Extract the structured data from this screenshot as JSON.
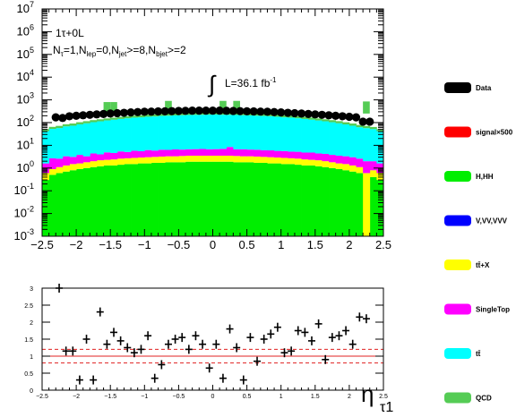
{
  "top_panel": {
    "ytick_exponents": [
      "-3",
      "-2",
      "-1",
      "0",
      "1",
      "2",
      "3",
      "4",
      "5",
      "6",
      "7"
    ],
    "xticks": [
      "−2.5",
      "−2",
      "−1.5",
      "−1",
      "−0.5",
      "0",
      "0.5",
      "1",
      "1.5",
      "2",
      "2.5"
    ],
    "annotation": {
      "line1": "1τ+0L",
      "line2_parts": [
        "N",
        "τ",
        "=1,N",
        "lep",
        "=0,N",
        "jet",
        ">=8,N",
        "bjet",
        ">=2"
      ],
      "lumi_integral": "∫",
      "lumi_text": "L=36.1 fb",
      "lumi_exp": "-1"
    }
  },
  "bottom_panel": {
    "yticks": [
      "0",
      "0.5",
      "1",
      "1.5",
      "2",
      "2.5",
      "3"
    ],
    "xticks": [
      "−2.5",
      "−2",
      "−1.5",
      "−1",
      "−0.5",
      "0",
      "0.5",
      "1",
      "1.5",
      "2",
      "2.5"
    ],
    "xlabel_main": "η",
    "xlabel_sub": "τ1"
  },
  "legend": [
    {
      "label": "Data",
      "color": "#000000"
    },
    {
      "label": "signal×500",
      "color": "#ff0000"
    },
    {
      "label": "H,HH",
      "color": "#00ee00"
    },
    {
      "label": "V,VV,VVV",
      "color": "#0000ff"
    },
    {
      "label": "tt̄+X",
      "color": "#ffff00"
    },
    {
      "label": "SingleTop",
      "color": "#ff00ff"
    },
    {
      "label": "tt̄",
      "color": "#00ffff"
    },
    {
      "label": "QCD",
      "color": "#55cc55"
    }
  ],
  "chart_data": [
    {
      "type": "bar",
      "title": "",
      "xlabel": "η_τ1",
      "ylabel": "",
      "yscale": "log",
      "xlim": [
        -2.5,
        2.5
      ],
      "ylim": [
        0.001,
        10000000
      ],
      "stacked": true,
      "bins": 50,
      "series": [
        {
          "name": "H,HH",
          "values": [
            0.3,
            0.5,
            0.6,
            0.7,
            0.8,
            0.9,
            1.0,
            1.1,
            1.2,
            1.3,
            1.3,
            1.4,
            1.5,
            1.5,
            1.6,
            1.6,
            1.7,
            1.7,
            1.8,
            1.8,
            1.8,
            1.9,
            1.9,
            1.9,
            1.9,
            1.9,
            1.9,
            1.9,
            1.8,
            1.8,
            1.8,
            1.7,
            1.7,
            1.6,
            1.6,
            1.5,
            1.5,
            1.4,
            1.3,
            1.3,
            1.2,
            1.1,
            1.0,
            0.9,
            0.8,
            0.7,
            0.6,
            0.001,
            0.4,
            0.3
          ]
        },
        {
          "name": "tt̄+X",
          "values": [
            0.3,
            0.4,
            0.5,
            0.6,
            0.7,
            0.7,
            0.8,
            0.9,
            1.0,
            1.0,
            1.1,
            1.2,
            1.2,
            1.3,
            1.3,
            1.4,
            1.4,
            1.5,
            1.5,
            1.5,
            1.6,
            1.6,
            1.6,
            1.6,
            1.6,
            1.6,
            1.6,
            1.6,
            1.6,
            1.5,
            1.5,
            1.5,
            1.4,
            1.4,
            1.3,
            1.3,
            1.2,
            1.2,
            1.1,
            1.0,
            1.0,
            0.9,
            0.8,
            0.7,
            0.7,
            0.6,
            0.5,
            0.6,
            0.4,
            0.3
          ]
        },
        {
          "name": "SingleTop",
          "values": [
            1.0,
            1.8,
            1.5,
            2.0,
            1.6,
            2.2,
            1.5,
            2.4,
            1.8,
            2.6,
            2.2,
            2.8,
            2.4,
            3.0,
            2.6,
            3.2,
            2.8,
            3.2,
            3.0,
            3.3,
            3.1,
            3.2,
            3.3,
            3.4,
            3.2,
            3.3,
            3.5,
            5.0,
            3.3,
            3.4,
            3.2,
            3.2,
            3.0,
            3.0,
            2.8,
            2.8,
            2.6,
            2.6,
            2.4,
            2.5,
            2.2,
            2.2,
            2.0,
            1.9,
            1.8,
            1.7,
            1.5,
            1.4,
            1.2,
            1.0
          ]
        },
        {
          "name": "tt̄",
          "values": [
            40,
            50,
            55,
            65,
            70,
            80,
            90,
            100,
            110,
            120,
            130,
            140,
            150,
            160,
            165,
            175,
            180,
            190,
            195,
            200,
            205,
            210,
            212,
            215,
            218,
            218,
            215,
            212,
            210,
            205,
            200,
            195,
            190,
            185,
            175,
            165,
            160,
            150,
            140,
            130,
            120,
            110,
            100,
            90,
            80,
            70,
            60,
            55,
            50,
            40
          ]
        },
        {
          "name": "QCD",
          "values": [
            10,
            12,
            14,
            16,
            18,
            20,
            22,
            24,
            26,
            28,
            30,
            32,
            34,
            36,
            38,
            40,
            42,
            44,
            46,
            48,
            48,
            50,
            50,
            52,
            52,
            52,
            52,
            50,
            50,
            48,
            48,
            46,
            44,
            42,
            40,
            38,
            36,
            34,
            32,
            30,
            28,
            26,
            24,
            22,
            20,
            18,
            16,
            14,
            12,
            10
          ]
        },
        {
          "name": "signal×500",
          "values": [
            0,
            0,
            0,
            0,
            0,
            0,
            0,
            0,
            0,
            0,
            0,
            0,
            0,
            0,
            0,
            0,
            0,
            0,
            0,
            0,
            0,
            0,
            0,
            0,
            0,
            0,
            0,
            0,
            0,
            0,
            0,
            0,
            0,
            0,
            0,
            0,
            0,
            0,
            0,
            0,
            0,
            0,
            0,
            0,
            0,
            0,
            0,
            0,
            0,
            0
          ]
        }
      ],
      "overlay_bins": [
        {
          "x": -1.55,
          "value": 800
        },
        {
          "x": -1.45,
          "value": 800
        },
        {
          "x": -0.65,
          "value": 900
        },
        {
          "x": 0.15,
          "value": 900
        },
        {
          "x": 0.35,
          "value": 900
        },
        {
          "x": 2.25,
          "value": 850
        }
      ],
      "data_points": {
        "name": "Data",
        "x": [
          -2.3,
          -2.2,
          -2.1,
          -2.0,
          -1.9,
          -1.8,
          -1.7,
          -1.6,
          -1.5,
          -1.4,
          -1.3,
          -1.2,
          -1.1,
          -1.0,
          -0.9,
          -0.8,
          -0.7,
          -0.6,
          -0.5,
          -0.4,
          -0.3,
          -0.2,
          -0.1,
          0.0,
          0.1,
          0.2,
          0.3,
          0.4,
          0.5,
          0.6,
          0.7,
          0.8,
          0.9,
          1.0,
          1.1,
          1.2,
          1.3,
          1.4,
          1.5,
          1.6,
          1.7,
          1.8,
          1.9,
          2.0,
          2.1,
          2.2,
          2.3
        ],
        "y": [
          170,
          160,
          190,
          200,
          210,
          220,
          230,
          240,
          250,
          260,
          270,
          280,
          290,
          300,
          305,
          310,
          315,
          320,
          325,
          330,
          335,
          335,
          335,
          335,
          335,
          330,
          325,
          320,
          315,
          310,
          305,
          300,
          290,
          280,
          270,
          260,
          250,
          240,
          230,
          220,
          210,
          200,
          190,
          180,
          170,
          110,
          110
        ]
      }
    },
    {
      "type": "scatter",
      "title": "",
      "xlabel": "η_τ1",
      "ylabel": "",
      "xlim": [
        -2.5,
        2.5
      ],
      "ylim": [
        0,
        3
      ],
      "reference_lines": [
        0.8,
        1.0,
        1.2
      ],
      "series": [
        {
          "name": "Data/MC",
          "x": [
            -2.25,
            -2.15,
            -2.05,
            -1.95,
            -1.85,
            -1.75,
            -1.65,
            -1.55,
            -1.45,
            -1.35,
            -1.25,
            -1.15,
            -1.05,
            -0.95,
            -0.85,
            -0.75,
            -0.65,
            -0.55,
            -0.45,
            -0.35,
            -0.25,
            -0.15,
            -0.05,
            0.05,
            0.15,
            0.25,
            0.35,
            0.45,
            0.55,
            0.65,
            0.75,
            0.85,
            0.95,
            1.05,
            1.15,
            1.25,
            1.35,
            1.45,
            1.55,
            1.65,
            1.75,
            1.85,
            1.95,
            2.05,
            2.15,
            2.25
          ],
          "y": [
            3.0,
            1.15,
            1.15,
            0.3,
            1.5,
            0.3,
            2.3,
            1.35,
            1.7,
            1.45,
            1.25,
            1.1,
            1.2,
            1.6,
            0.35,
            0.75,
            1.35,
            1.5,
            1.55,
            1.2,
            1.6,
            1.35,
            0.65,
            1.35,
            0.35,
            1.8,
            1.25,
            0.3,
            1.55,
            0.85,
            1.5,
            1.65,
            1.85,
            1.1,
            1.15,
            1.75,
            1.7,
            1.45,
            1.95,
            0.9,
            1.55,
            1.6,
            1.75,
            1.35,
            2.15,
            2.1
          ]
        }
      ]
    }
  ]
}
